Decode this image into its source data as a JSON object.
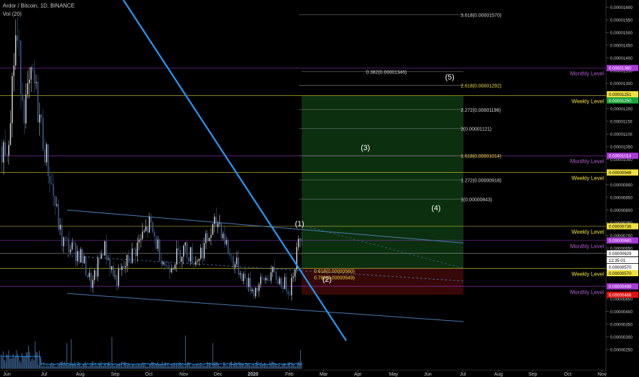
{
  "header": {
    "title": "Ardor / Bitcoin, 1D, BINANCE",
    "volume_label": "Vol (20)"
  },
  "chart_data": {
    "type": "candlestick",
    "symbol": "Ardor / Bitcoin",
    "interval": "1D",
    "exchange": "BINANCE",
    "ylim": [
      2.2e-06,
      1.62e-05
    ],
    "x_ticks": [
      "Jun",
      "Jul",
      "Aug",
      "Sep",
      "Oct",
      "Nov",
      "Dec",
      "2020",
      "Feb",
      "Mar",
      "Apr",
      "May",
      "Jun",
      "Jul",
      "Aug",
      "Sep",
      "Oct",
      "Nov"
    ],
    "y_ticks": [
      "0.00001600",
      "0.00001550",
      "0.00001500",
      "0.00001450",
      "0.00001400",
      "0.00001350",
      "0.00001300",
      "0.00001250",
      "0.00001200",
      "0.00001150",
      "0.00001100",
      "0.00001050",
      "0.00001000",
      "0.00000950",
      "0.00000900",
      "0.00000850",
      "0.00000800",
      "0.00000750",
      "0.00000700",
      "0.00000650",
      "0.00000600",
      "0.00000550",
      "0.00000500",
      "0.00000450",
      "0.00000400",
      "0.00000350",
      "0.00000300",
      "0.00000250"
    ],
    "price_path": [
      [
        "Jun",
        1.05e-05
      ],
      [
        "Jun",
        1.5e-05
      ],
      [
        "Jun",
        1.2e-05
      ],
      [
        "Jun",
        1.32e-05
      ],
      [
        "Jul",
        1.05e-05
      ],
      [
        "Jul",
        6.8e-06
      ],
      [
        "Aug",
        6.2e-06
      ],
      [
        "Aug",
        5e-06
      ],
      [
        "Aug",
        6.6e-06
      ],
      [
        "Sep",
        5.2e-06
      ],
      [
        "Sep",
        6.3e-06
      ],
      [
        "Oct",
        7.4e-06
      ],
      [
        "Oct",
        5.7e-06
      ],
      [
        "Nov",
        6.5e-06
      ],
      [
        "Nov",
        6e-06
      ],
      [
        "Nov",
        6.8e-06
      ],
      [
        "Dec",
        7.6e-06
      ],
      [
        "Dec",
        6.2e-06
      ],
      [
        "Dec",
        5.5e-06
      ],
      [
        "2020",
        4.8e-06
      ],
      [
        "2020",
        5.5e-06
      ],
      [
        "Feb",
        4.9e-06
      ],
      [
        "Feb",
        7.2e-06
      ],
      [
        "Feb",
        6.2e-06
      ]
    ],
    "current_price": "0.00000629",
    "countdown": "12:35:01",
    "levels": [
      {
        "label": "Monthly Level",
        "price": "0.00001360",
        "kind": "monthly"
      },
      {
        "label": "Weekly Level",
        "price": "0.00001251",
        "kind": "weekly"
      },
      {
        "label": "Monthly Level",
        "price": "0.00001014",
        "kind": "monthly"
      },
      {
        "label": "Weekly Level",
        "price": "0.00000948",
        "kind": "weekly"
      },
      {
        "label": "Weekly Level",
        "price": "0.00000736",
        "kind": "weekly"
      },
      {
        "label": "Monthly Level",
        "price": "0.00000680",
        "kind": "monthly"
      },
      {
        "label": "Weekly Level",
        "price": "0.00000570",
        "kind": "weekly"
      },
      {
        "label": "Monthly Level",
        "price": "0.00000499",
        "kind": "monthly"
      }
    ],
    "axis_tags": [
      {
        "text": "0.00001360",
        "kind": "monthly"
      },
      {
        "text": "0.00001251",
        "kind": "weekly"
      },
      {
        "text": "0.00001250",
        "kind": "target"
      },
      {
        "text": "0.00001014",
        "kind": "monthly"
      },
      {
        "text": "0.00000948",
        "kind": "weekly"
      },
      {
        "text": "0.00000736",
        "kind": "weekly"
      },
      {
        "text": "0.00000680",
        "kind": "monthly"
      },
      {
        "text": "0.00000629",
        "kind": "current"
      },
      {
        "text": "12:35:01",
        "kind": "current"
      },
      {
        "text": "0.00000570",
        "kind": "entry"
      },
      {
        "text": "0.00000570",
        "kind": "weekly"
      },
      {
        "text": "0.00000499",
        "kind": "monthly"
      },
      {
        "text": "0.00000466",
        "kind": "stop"
      }
    ],
    "fib_levels": [
      {
        "label": "3.618(0.00001570)",
        "value": 1.57e-05
      },
      {
        "label": "0.382(0.00001346)",
        "value": 1.346e-05
      },
      {
        "label": "2.618(0.00001292)",
        "value": 1.292e-05
      },
      {
        "label": "2.272(0.00001196)",
        "value": 1.196e-05
      },
      {
        "label": "2(0.00001121)",
        "value": 1.121e-05
      },
      {
        "label": "1.618(0.00001014)",
        "value": 1.014e-05
      },
      {
        "label": "1.272(0.00000918)",
        "value": 9.18e-06
      },
      {
        "label": "1(0.00000843)",
        "value": 8.43e-06
      },
      {
        "label": "0.618(0.00000560)",
        "value": 5.6e-06
      },
      {
        "label": "0.786(0.00000549)",
        "value": 5.49e-06
      }
    ],
    "wave_labels": [
      "(1)",
      "(2)",
      "(3)",
      "(4)",
      "(5)"
    ],
    "position": {
      "entry": 5.7e-06,
      "target": 1.25e-05,
      "stop": 4.66e-06
    },
    "colors": {
      "up": "#c8c8c8",
      "down": "#3a5a8a",
      "downtrend_line": "#2196f3",
      "channel": "#4a7fb5",
      "monthly": "#a83ad6",
      "monthly_text": "#b060d0",
      "weekly": "#f0e040",
      "weekly_text": "#f0e040",
      "target_zone": "#0d3310",
      "stop_zone": "#3a0808",
      "target_tag": "#1aa53a",
      "stop_tag": "#e01010",
      "volume": "#3a5f8a",
      "volume_ma": "#2196f3"
    }
  }
}
